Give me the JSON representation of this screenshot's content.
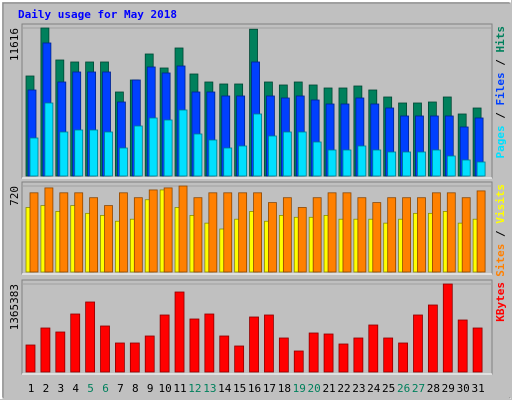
{
  "legend_separator": " / ",
  "chart_data": [
    {
      "type": "bar",
      "title": "Daily usage for May 2018",
      "categories": [
        "1",
        "2",
        "3",
        "4",
        "5",
        "6",
        "7",
        "8",
        "9",
        "10",
        "11",
        "12",
        "13",
        "14",
        "15",
        "16",
        "17",
        "18",
        "19",
        "20",
        "21",
        "22",
        "23",
        "24",
        "25",
        "26",
        "27",
        "28",
        "29",
        "30",
        "31"
      ],
      "category_colors": [
        "#000000",
        "#000000",
        "#000000",
        "#000000",
        "#00805c",
        "#00805c",
        "#000000",
        "#000000",
        "#000000",
        "#000000",
        "#000000",
        "#00805c",
        "#00805c",
        "#000000",
        "#000000",
        "#000000",
        "#000000",
        "#000000",
        "#00805c",
        "#00805c",
        "#000000",
        "#000000",
        "#000000",
        "#000000",
        "#000000",
        "#00805c",
        "#00805c",
        "#000000",
        "#000000",
        "#000000",
        "#000000"
      ],
      "ylim": [
        0,
        11616
      ],
      "yticks": [
        11616
      ],
      "series": [
        {
          "name": "Hits",
          "color": "#00805c",
          "values": [
            7849,
            11616,
            9105,
            8948,
            8948,
            8948,
            6593,
            7535,
            9576,
            8477,
            10047,
            8006,
            7378,
            7221,
            7221,
            11520,
            7378,
            7143,
            7378,
            7143,
            6907,
            6907,
            7064,
            6750,
            6201,
            5730,
            5730,
            5808,
            6201,
            4867,
            5337
          ]
        },
        {
          "name": "Files",
          "color": "#0040ff",
          "values": [
            6750,
            10440,
            7378,
            8163,
            8163,
            8163,
            5808,
            7535,
            8556,
            8085,
            8634,
            6593,
            6593,
            6280,
            6280,
            8948,
            6280,
            6122,
            6280,
            5965,
            5651,
            5651,
            6122,
            5651,
            5337,
            4710,
            4710,
            4710,
            4710,
            3846,
            4553
          ]
        },
        {
          "name": "Pages",
          "color": "#00e0ff",
          "values": [
            2983,
            5730,
            3454,
            3611,
            3611,
            3454,
            2198,
            3925,
            4553,
            4396,
            5181,
            3297,
            2826,
            2198,
            2355,
            4867,
            3140,
            3454,
            3454,
            2669,
            2041,
            2041,
            2355,
            2041,
            1884,
            1884,
            1884,
            2041,
            1570,
            1256,
            1099
          ]
        }
      ]
    },
    {
      "type": "bar",
      "ylim": [
        0,
        720
      ],
      "yticks": [
        720
      ],
      "series": [
        {
          "name": "Visits",
          "color": "#ffff00",
          "values": [
            540,
            556,
            507,
            556,
            491,
            474,
            425,
            442,
            605,
            687,
            540,
            474,
            409,
            360,
            442,
            507,
            425,
            474,
            458,
            458,
            474,
            442,
            442,
            442,
            409,
            442,
            491,
            491,
            507,
            409,
            442
          ]
        },
        {
          "name": "Sites",
          "color": "#ff8000",
          "values": [
            663,
            704,
            663,
            663,
            622,
            556,
            663,
            622,
            687,
            704,
            720,
            622,
            663,
            663,
            663,
            663,
            581,
            622,
            540,
            622,
            663,
            663,
            622,
            581,
            622,
            622,
            622,
            663,
            663,
            622,
            679
          ]
        }
      ]
    },
    {
      "type": "bar",
      "ylim": [
        0,
        1365383
      ],
      "yticks": [
        1365383
      ],
      "series": [
        {
          "name": "KBytes",
          "color": "#ff0000",
          "values": [
            418932,
            682704,
            620640,
            899928,
            1086120,
            713736,
            449964,
            449964,
            558576,
            884412,
            1241280,
            822348,
            899928,
            558576,
            403416,
            853380,
            884412,
            527544,
            325836,
            605124,
            589608,
            434448,
            527544,
            729252,
            527544,
            449964,
            884412,
            1039572,
            1365383,
            806832,
            682704
          ]
        }
      ]
    }
  ]
}
